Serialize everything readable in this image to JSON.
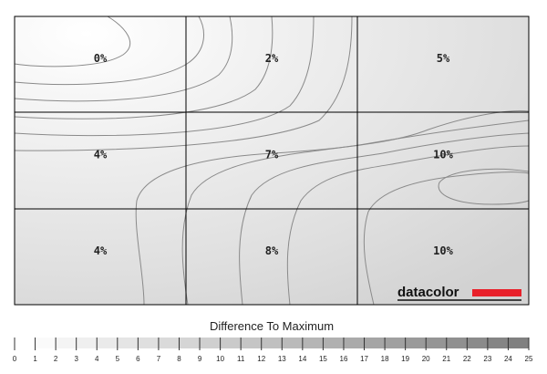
{
  "chart_data": {
    "type": "heatmap",
    "rows": 3,
    "cols": 3,
    "values": [
      [
        "0%",
        "2%",
        "5%"
      ],
      [
        "4%",
        "7%",
        "10%"
      ],
      [
        "4%",
        "8%",
        "10%"
      ]
    ],
    "legend": {
      "title": "Difference To Maximum",
      "ticks": [
        "0",
        "1",
        "2",
        "3",
        "4",
        "5",
        "6",
        "7",
        "8",
        "9",
        "10",
        "11",
        "12",
        "13",
        "14",
        "15",
        "16",
        "17",
        "18",
        "19",
        "20",
        "21",
        "22",
        "23",
        "24",
        "25"
      ],
      "color_start": "#ffffff",
      "color_end": "#808080"
    },
    "brand": "datacolor",
    "colors": {
      "grid_line": "#000000",
      "contour": "#8a8a8a",
      "brand_bar": "#e8202a"
    }
  }
}
